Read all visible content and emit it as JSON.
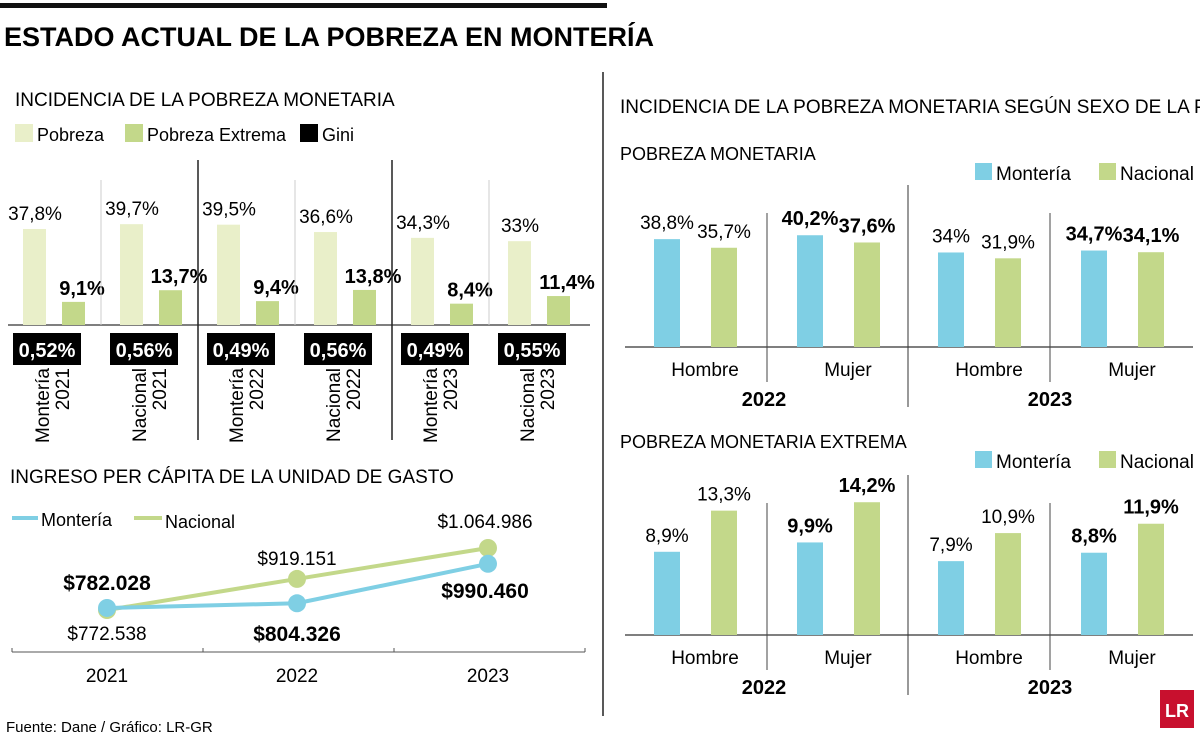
{
  "title": "ESTADO ACTUAL DE LA POBREZA EN MONTERÍA",
  "source": "Fuente: Dane / Gráfico: LR-GR",
  "logo": "LR",
  "colors": {
    "pobreza": "#e9efc9",
    "pobreza_extrema": "#c3d88a",
    "gini": "#000000",
    "monteria": "#7fcfe4",
    "nacional": "#c3d88a"
  },
  "chart_data": [
    {
      "type": "bar",
      "title": "INCIDENCIA DE LA POBREZA MONETARIA",
      "legend": [
        "Pobreza",
        "Pobreza Extrema",
        "Gini"
      ],
      "legend_placement": "top-left",
      "categories": [
        "Montería 2021",
        "Nacional 2021",
        "Montería 2022",
        "Nacional 2022",
        "Montería 2023",
        "Nacional 2023"
      ],
      "category_lines": [
        [
          "Montería",
          "2021"
        ],
        [
          "Nacional",
          "2021"
        ],
        [
          "Montería",
          "2022"
        ],
        [
          "Nacional",
          "2022"
        ],
        [
          "Montería",
          "2023"
        ],
        [
          "Nacional",
          "2023"
        ]
      ],
      "series": [
        {
          "name": "Pobreza",
          "values": [
            37.8,
            39.7,
            39.5,
            36.6,
            34.3,
            33
          ],
          "labels": [
            "37,8%",
            "39,7%",
            "39,5%",
            "36,6%",
            "34,3%",
            "33%"
          ]
        },
        {
          "name": "Pobreza Extrema",
          "values": [
            9.1,
            13.7,
            9.4,
            13.8,
            8.4,
            11.4
          ],
          "labels": [
            "9,1%",
            "13,7%",
            "9,4%",
            "13,8%",
            "8,4%",
            "11,4%"
          ]
        },
        {
          "name": "Gini",
          "values": [
            0.52,
            0.56,
            0.49,
            0.56,
            0.49,
            0.55
          ],
          "labels": [
            "0,52%",
            "0,56%",
            "0,49%",
            "0,56%",
            "0,49%",
            "0,55%"
          ]
        }
      ]
    },
    {
      "type": "line",
      "title": "INGRESO PER CÁPITA DE LA UNIDAD DE GASTO",
      "legend_placement": "top-left",
      "categories": [
        "2021",
        "2022",
        "2023"
      ],
      "series": [
        {
          "name": "Montería",
          "values": [
            782028,
            804326,
            990460
          ],
          "labels": [
            "$782.028",
            "$804.326",
            "$990.460"
          ]
        },
        {
          "name": "Nacional",
          "values": [
            772538,
            919151,
            1064986
          ],
          "labels": [
            "$772.538",
            "$919.151",
            "$1.064.986"
          ]
        }
      ]
    },
    {
      "type": "bar",
      "section_title": "INCIDENCIA DE LA POBREZA MONETARIA SEGÚN SEXO DE LA PERSONA",
      "title": "POBREZA MONETARIA",
      "legend_placement": "top-right",
      "categories": [
        "Hombre",
        "Mujer",
        "Hombre",
        "Mujer"
      ],
      "groups": [
        "2022",
        "2023"
      ],
      "series": [
        {
          "name": "Montería",
          "values": [
            38.8,
            40.2,
            34,
            34.7
          ],
          "labels": [
            "38,8%",
            "40,2%",
            "34%",
            "34,7%"
          ]
        },
        {
          "name": "Nacional",
          "values": [
            35.7,
            37.6,
            31.9,
            34.1
          ],
          "labels": [
            "35,7%",
            "37,6%",
            "31,9%",
            "34,1%"
          ]
        }
      ]
    },
    {
      "type": "bar",
      "title": "POBREZA MONETARIA EXTREMA",
      "legend_placement": "top-right",
      "categories": [
        "Hombre",
        "Mujer",
        "Hombre",
        "Mujer"
      ],
      "groups": [
        "2022",
        "2023"
      ],
      "series": [
        {
          "name": "Montería",
          "values": [
            8.9,
            9.9,
            7.9,
            8.8
          ],
          "labels": [
            "8,9%",
            "9,9%",
            "7,9%",
            "8,8%"
          ]
        },
        {
          "name": "Nacional",
          "values": [
            13.3,
            14.2,
            10.9,
            11.9
          ],
          "labels": [
            "13,3%",
            "14,2%",
            "10,9%",
            "11,9%"
          ]
        }
      ]
    }
  ]
}
